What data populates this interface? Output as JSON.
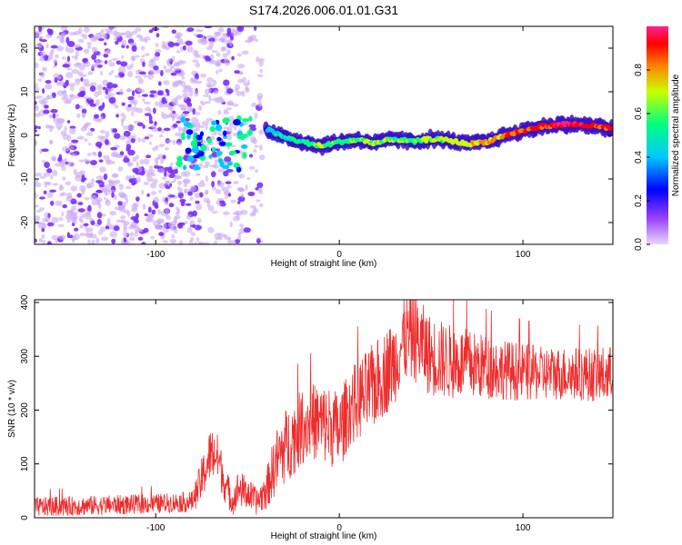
{
  "title": "S174.2026.006.01.01.G31",
  "chart_data": [
    {
      "type": "heatmap",
      "panel": "spectrogram",
      "xlabel": "Height of straight line (km)",
      "ylabel": "Frequency (Hz)",
      "xlim": [
        -166,
        149
      ],
      "ylim": [
        -25,
        25
      ],
      "x_ticks": [
        -100,
        0,
        100
      ],
      "y_ticks": [
        -20,
        -10,
        0,
        10,
        20
      ],
      "colorbar": {
        "label": "Normalized spectral amplitude",
        "range": [
          0,
          1
        ],
        "ticks": [
          0.0,
          0.2,
          0.4,
          0.6,
          0.8
        ],
        "colormap": [
          "#e8d8f8",
          "#7a2cff",
          "#0000ff",
          "#00c8ff",
          "#00ff80",
          "#c8ff00",
          "#ff8000",
          "#ff0000",
          "#ff2090"
        ]
      },
      "signal_track": {
        "x": [
          -40,
          -30,
          -20,
          -10,
          0,
          10,
          20,
          30,
          40,
          50,
          60,
          70,
          80,
          90,
          100,
          110,
          120,
          130,
          140,
          149
        ],
        "y": [
          1.5,
          -0.5,
          -1.5,
          -2.5,
          -1.5,
          -1.0,
          -1.8,
          -0.8,
          -1.5,
          -0.8,
          -1.2,
          -2.0,
          -1.5,
          0.0,
          1.0,
          2.0,
          2.5,
          2.5,
          2.0,
          1.5
        ],
        "amplitude": [
          0.35,
          0.45,
          0.5,
          0.55,
          0.5,
          0.55,
          0.6,
          0.5,
          0.55,
          0.6,
          0.6,
          0.65,
          0.7,
          0.75,
          0.8,
          0.85,
          0.9,
          0.9,
          0.85,
          0.8
        ]
      },
      "noise_regions": [
        {
          "x_range": [
            -166,
            -85
          ],
          "level": "dense"
        },
        {
          "x_range": [
            -85,
            -60
          ],
          "level": "medium"
        },
        {
          "x_range": [
            -60,
            -42
          ],
          "level": "sparse"
        }
      ]
    },
    {
      "type": "line",
      "panel": "snr",
      "xlabel": "Height of straight line (km)",
      "ylabel": "SNR (10 * v/v)",
      "xlim": [
        -166,
        149
      ],
      "ylim": [
        0,
        405
      ],
      "x_ticks": [
        -100,
        0,
        100
      ],
      "y_ticks": [
        0,
        100,
        200,
        300,
        400
      ],
      "series": [
        {
          "color": "#ee2c2c",
          "x": [
            -166,
            -140,
            -120,
            -100,
            -90,
            -80,
            -75,
            -70,
            -66,
            -62,
            -58,
            -55,
            -50,
            -45,
            -40,
            -35,
            -30,
            -25,
            -20,
            -15,
            -10,
            -5,
            0,
            5,
            10,
            15,
            20,
            30,
            35,
            40,
            45,
            50,
            60,
            70,
            80,
            90,
            100,
            110,
            120,
            130,
            140,
            145,
            149
          ],
          "y": [
            20,
            22,
            24,
            26,
            28,
            30,
            70,
            120,
            110,
            60,
            30,
            55,
            45,
            30,
            50,
            100,
            130,
            150,
            170,
            180,
            175,
            170,
            160,
            200,
            220,
            230,
            250,
            290,
            330,
            340,
            320,
            300,
            290,
            285,
            280,
            275,
            270,
            268,
            268,
            268,
            265,
            265,
            265
          ],
          "noise_amplitude": [
            18,
            18,
            18,
            18,
            18,
            20,
            40,
            50,
            45,
            35,
            25,
            35,
            30,
            25,
            35,
            60,
            70,
            70,
            70,
            70,
            75,
            75,
            75,
            70,
            75,
            80,
            80,
            80,
            80,
            85,
            80,
            75,
            70,
            65,
            60,
            55,
            55,
            50,
            50,
            50,
            50,
            55,
            55
          ]
        }
      ]
    }
  ]
}
